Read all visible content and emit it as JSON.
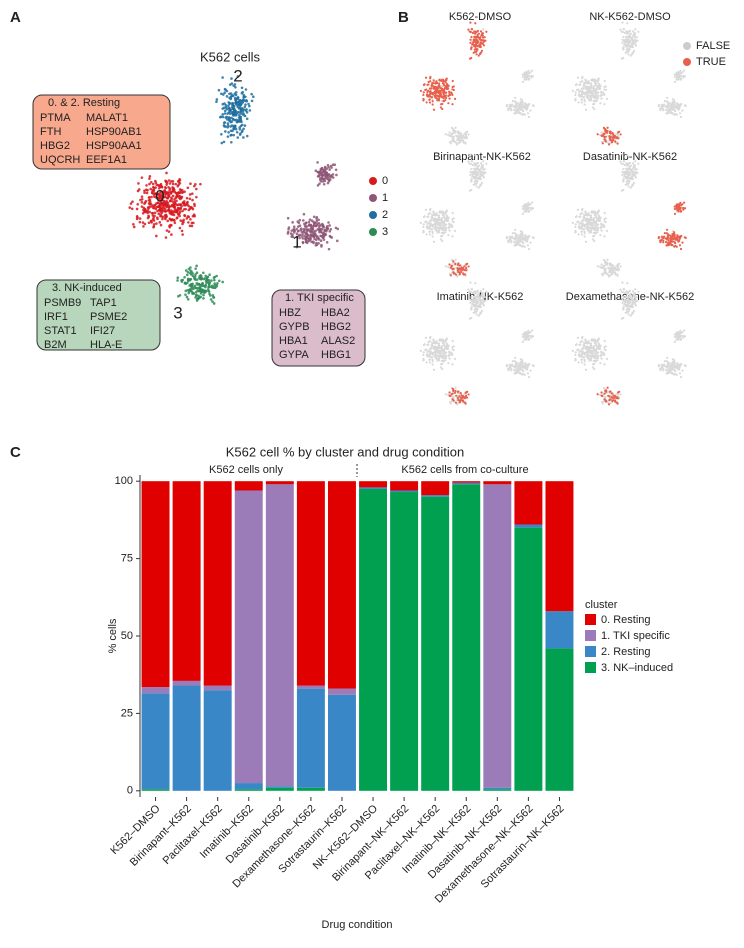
{
  "panel_labels": [
    "A",
    "B",
    "C"
  ],
  "panel_a": {
    "title": "K562 cells",
    "cluster_labels": [
      "0",
      "1",
      "2",
      "3"
    ],
    "legend": [
      "0",
      "1",
      "2",
      "3"
    ],
    "boxes": [
      {
        "title": "0. & 2. Resting",
        "genes": [
          "PTMA",
          "FTH",
          "HBG2",
          "UQCRH",
          "MALAT1",
          "HSP90AB1",
          "HSP90AA1",
          "EEF1A1"
        ]
      },
      {
        "title": "3. NK-induced",
        "genes": [
          "PSMB9",
          "IRF1",
          "STAT1",
          "B2M",
          "TAP1",
          "PSME2",
          "IFI27",
          "HLA-E"
        ]
      },
      {
        "title": "1. TKI specific",
        "genes": [
          "HBZ",
          "GYPB",
          "HBA1",
          "GYPA",
          "HBA2",
          "HBG2",
          "ALAS2",
          "HBG1"
        ]
      }
    ]
  },
  "panel_b": {
    "titles": [
      "K562-DMSO",
      "NK-K562-DMSO",
      "Birinapant-NK-K562",
      "Dasatinib-NK-K562",
      "Imatinib-NK-K562",
      "Dexamethasone-NK-K562"
    ],
    "legend": [
      "FALSE",
      "TRUE"
    ]
  },
  "chart_data": {
    "type": "stacked_bar",
    "title": "K562 cell % by cluster and drug condition",
    "subtitles": [
      "K562 cells only",
      "K562 cells from co-culture"
    ],
    "x_label": "Drug condition",
    "y_label": "% cells",
    "legend_title": "cluster",
    "categories": [
      "K562–DMSO",
      "Birinapant–K562",
      "Paclitaxel–K562",
      "Imatinib–K562",
      "Dasatinib–K562",
      "Dexamethasone–K562",
      "Sotrastaurin–K562",
      "NK–K562–DMSO",
      "Birinapant–NK–K562",
      "Paclitaxel–NK–K562",
      "Imatinib–NK–K562",
      "Dasatinib–NK–K562",
      "Dexamethasone–NK–K562",
      "Sotrastaurin–NK–K562"
    ],
    "series": [
      {
        "name": "3. NK–induced",
        "color": "#00a050",
        "values": [
          0.5,
          0,
          0,
          0.5,
          1,
          1,
          0,
          97.5,
          96.5,
          95,
          99,
          0.5,
          85,
          46
        ]
      },
      {
        "name": "2. Resting",
        "color": "#3a87c8",
        "values": [
          31,
          34,
          32.5,
          2,
          0.5,
          32,
          31,
          0.5,
          0.5,
          0.5,
          0.5,
          0.5,
          1,
          12
        ]
      },
      {
        "name": "1. TKI specific",
        "color": "#9b7bb8",
        "values": [
          2,
          1.5,
          1.5,
          94.5,
          97.5,
          1,
          2,
          0,
          0,
          0,
          0,
          98,
          0,
          0
        ]
      },
      {
        "name": "0. Resting",
        "color": "#e00000",
        "values": [
          66.5,
          64.5,
          66,
          3,
          1,
          66,
          67,
          2,
          3,
          4.5,
          0.5,
          1,
          14,
          42
        ]
      }
    ],
    "ylim": [
      -2,
      102
    ],
    "yticks": [
      0,
      25,
      50,
      75,
      100
    ]
  }
}
